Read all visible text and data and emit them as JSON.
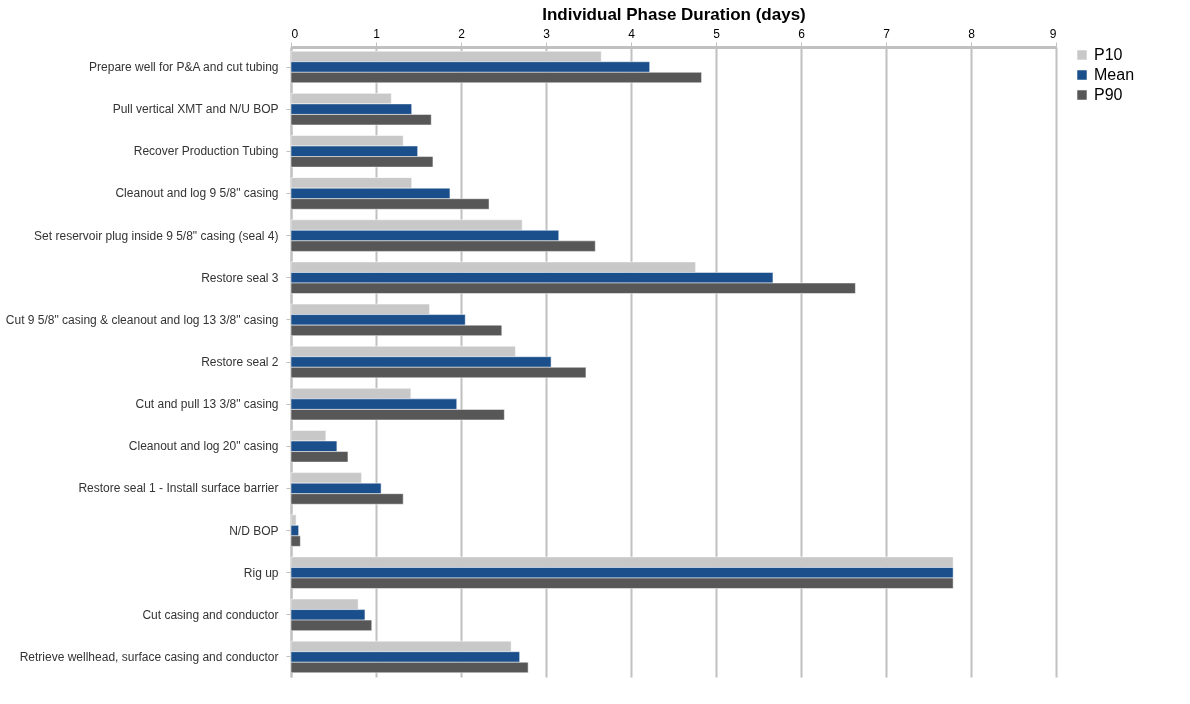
{
  "chart_data": {
    "type": "bar",
    "orientation": "horizontal",
    "xlabel": "Individual Phase Duration (days)",
    "categories": [
      "Prepare well for P&A and cut tubing",
      "Pull vertical XMT and N/U BOP",
      "Recover Production Tubing",
      "Cleanout and log 9 5/8\" casing",
      "Set reservoir plug inside 9 5/8\" casing (seal 4)",
      "Restore seal 3",
      "Cut 9 5/8\" casing & cleanout and log 13 3/8\" casing",
      "Restore seal 2",
      "Cut and pull 13 3/8\" casing",
      "Cleanout and log 20\" casing",
      "Restore seal 1 - Install surface barrier",
      "N/D BOP",
      "Rig up",
      "Cut casing and conductor",
      "Retrieve wellhead, surface casing and conductor"
    ],
    "series": [
      {
        "name": "P10",
        "color": "#c8c8c8",
        "values": [
          3.65,
          1.18,
          1.32,
          1.42,
          2.72,
          4.76,
          1.63,
          2.64,
          1.41,
          0.41,
          0.83,
          0.06,
          7.79,
          0.79,
          2.59
        ]
      },
      {
        "name": "Mean",
        "color": "#1a4f8b",
        "values": [
          4.22,
          1.42,
          1.49,
          1.87,
          3.15,
          5.67,
          2.05,
          3.06,
          1.95,
          0.54,
          1.06,
          0.09,
          7.79,
          0.87,
          2.69
        ]
      },
      {
        "name": "P90",
        "color": "#575757",
        "values": [
          4.83,
          1.65,
          1.67,
          2.33,
          3.58,
          6.64,
          2.48,
          3.47,
          2.51,
          0.67,
          1.32,
          0.11,
          7.79,
          0.95,
          2.79
        ]
      }
    ],
    "xlim": [
      0,
      9
    ],
    "xticks": [
      0,
      1,
      2,
      3,
      4,
      5,
      6,
      7,
      8,
      9
    ],
    "grid": "x",
    "legend": "right"
  }
}
